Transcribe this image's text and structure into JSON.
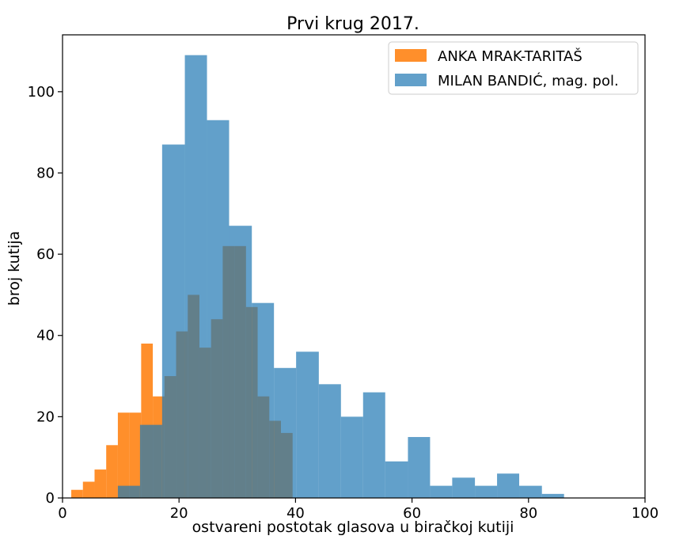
{
  "chart_data": {
    "type": "histogram",
    "title": "Prvi krug 2017.",
    "xlabel": "ostvareni postotak glasova u biračkoj kutiji",
    "ylabel": "broj kutija",
    "xlim": [
      0,
      100
    ],
    "ylim": [
      0,
      114
    ],
    "x_ticks": [
      0,
      20,
      40,
      60,
      80,
      100
    ],
    "y_ticks": [
      0,
      20,
      40,
      60,
      80,
      100
    ],
    "grid": false,
    "legend_position": "top-right",
    "series": [
      {
        "name": "ANKA MRAK-TARITAŠ",
        "color": "#ff7f0e",
        "bin_edges": [
          1.5,
          3.5,
          5.5,
          7.5,
          9.5,
          11.5,
          13.5,
          15.5,
          17.5,
          19.5,
          21.5,
          23.5,
          25.5,
          27.5,
          29.5,
          31.5,
          33.5,
          35.5,
          37.5,
          39.5
        ],
        "counts": [
          2,
          4,
          7,
          13,
          21,
          21,
          38,
          25,
          30,
          41,
          50,
          37,
          44,
          62,
          62,
          47,
          25,
          19,
          16
        ]
      },
      {
        "name": "MILAN BANDIĆ, mag. pol.",
        "color": "#1f77b4",
        "bin_edges": [
          9.5,
          13.3,
          17.1,
          21.0,
          24.8,
          28.6,
          32.5,
          36.3,
          40.1,
          44.0,
          47.8,
          51.6,
          55.4,
          59.3,
          63.1,
          66.9,
          70.8,
          74.6,
          78.4,
          82.3,
          86.1
        ],
        "counts": [
          3,
          18,
          87,
          109,
          93,
          67,
          48,
          32,
          36,
          28,
          20,
          26,
          9,
          15,
          3,
          5,
          3,
          6,
          3,
          1
        ]
      }
    ]
  }
}
